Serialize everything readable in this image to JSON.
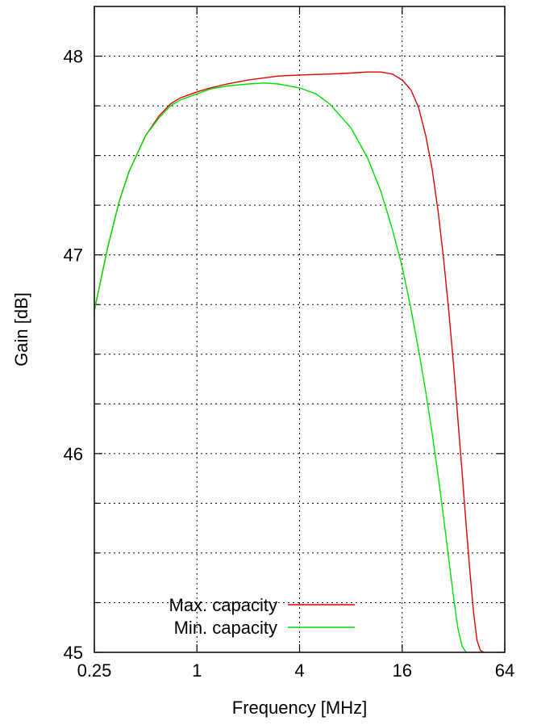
{
  "chart_data": {
    "type": "line",
    "title": "",
    "xlabel": "Frequency [MHz]",
    "ylabel": "Gain [dB]",
    "x_scale": "log2",
    "xlim": [
      0.25,
      64
    ],
    "ylim": [
      45,
      48.25
    ],
    "x_ticks": [
      0.25,
      1,
      4,
      16,
      64
    ],
    "x_tick_labels": [
      "0.25",
      "1",
      "4",
      "16",
      "64"
    ],
    "y_ticks": [
      45,
      45.25,
      45.5,
      45.75,
      46,
      46.25,
      46.5,
      46.75,
      47,
      47.25,
      47.5,
      47.75,
      48
    ],
    "y_tick_labels": [
      "45",
      "",
      "",
      "",
      "46",
      "",
      "",
      "",
      "47",
      "",
      "",
      "",
      "48"
    ],
    "grid": true,
    "legend_position": "bottom-left",
    "series": [
      {
        "name": "Max. capacity",
        "color": "#e00000",
        "x": [
          0.25,
          0.3,
          0.35,
          0.4,
          0.5,
          0.6,
          0.7,
          0.8,
          1,
          1.2,
          1.5,
          2,
          3,
          4,
          6,
          8,
          10,
          12,
          14,
          16,
          18,
          20,
          22,
          24,
          26,
          28,
          30,
          32,
          34,
          36,
          38,
          40,
          42,
          44,
          46,
          48
        ],
        "y": [
          46.72,
          47.04,
          47.27,
          47.42,
          47.6,
          47.7,
          47.76,
          47.79,
          47.82,
          47.84,
          47.86,
          47.88,
          47.9,
          47.905,
          47.91,
          47.915,
          47.92,
          47.92,
          47.91,
          47.88,
          47.83,
          47.74,
          47.6,
          47.43,
          47.22,
          46.98,
          46.72,
          46.45,
          46.17,
          45.9,
          45.64,
          45.4,
          45.2,
          45.06,
          45.01,
          45.0
        ]
      },
      {
        "name": "Min. capacity",
        "color": "#00e000",
        "x": [
          0.25,
          0.3,
          0.35,
          0.4,
          0.5,
          0.6,
          0.7,
          0.8,
          1,
          1.2,
          1.5,
          2,
          2.5,
          3,
          4,
          5,
          6,
          8,
          10,
          12,
          14,
          16,
          18,
          20,
          22,
          24,
          26,
          28,
          30,
          32,
          34,
          36,
          38
        ],
        "y": [
          46.72,
          47.04,
          47.27,
          47.42,
          47.6,
          47.69,
          47.75,
          47.78,
          47.81,
          47.835,
          47.85,
          47.86,
          47.865,
          47.86,
          47.84,
          47.81,
          47.76,
          47.64,
          47.49,
          47.32,
          47.13,
          46.94,
          46.73,
          46.52,
          46.31,
          46.1,
          45.89,
          45.68,
          45.47,
          45.28,
          45.12,
          45.03,
          45.0
        ]
      }
    ]
  }
}
